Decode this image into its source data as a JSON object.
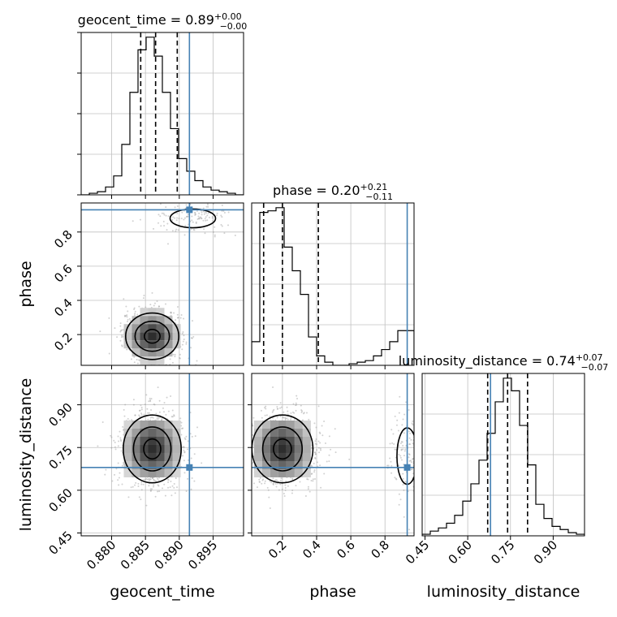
{
  "chart_data": {
    "type": "corner",
    "parameters": [
      "geocent_time",
      "phase",
      "luminosity_distance"
    ],
    "injection": {
      "geocent_time": 0.8915,
      "phase": 0.93,
      "luminosity_distance": 0.68
    },
    "colors": {
      "injection": "#4682b4",
      "contour": "#000000",
      "grid": "#c0c0c0",
      "scatter": "#9a9a9a"
    },
    "grid": true,
    "titles": [
      {
        "param": "geocent_time",
        "prefix": "geocent_time = 0.89",
        "plus": "+0.00",
        "minus": "−0.00"
      },
      {
        "param": "phase",
        "prefix": "phase = 0.20",
        "plus": "+0.21",
        "minus": "−0.11"
      },
      {
        "param": "luminosity_distance",
        "prefix": "luminosity_distance = 0.74",
        "plus": "+0.07",
        "minus": "−0.07"
      }
    ],
    "axes": {
      "geocent_time": {
        "label": "geocent_time",
        "range": [
          0.8755,
          0.8995
        ],
        "ticks": [
          0.88,
          0.885,
          0.89,
          0.895
        ],
        "tick_labels": [
          "0.880",
          "0.885",
          "0.890",
          "0.895"
        ]
      },
      "phase": {
        "label": "phase",
        "range": [
          0.02,
          0.97
        ],
        "ticks": [
          0.2,
          0.4,
          0.6,
          0.8
        ],
        "tick_labels": [
          "0.2",
          "0.4",
          "0.6",
          "0.8"
        ]
      },
      "luminosity_distance": {
        "label": "luminosity_distance",
        "range": [
          0.44,
          1.01
        ],
        "ticks": [
          0.45,
          0.6,
          0.75,
          0.9
        ],
        "tick_labels": [
          "0.45",
          "0.60",
          "0.75",
          "0.90"
        ]
      }
    },
    "histograms": [
      {
        "param": "geocent_time",
        "bin_edges": [
          0.8755,
          0.8767,
          0.8779,
          0.8791,
          0.8803,
          0.8815,
          0.8827,
          0.8839,
          0.8851,
          0.8863,
          0.8875,
          0.8887,
          0.8899,
          0.8911,
          0.8923,
          0.8935,
          0.8947,
          0.8959,
          0.8971,
          0.8983,
          0.8995
        ],
        "counts": [
          0,
          1,
          2,
          5,
          12,
          32,
          65,
          92,
          100,
          88,
          65,
          42,
          23,
          15,
          9,
          5,
          3,
          2,
          1,
          0
        ],
        "quantiles": [
          0.8843,
          0.8865,
          0.8897
        ]
      },
      {
        "param": "phase",
        "bin_edges": [
          0.02,
          0.0675,
          0.115,
          0.1625,
          0.21,
          0.2575,
          0.305,
          0.3525,
          0.4,
          0.4475,
          0.495,
          0.5425,
          0.59,
          0.6375,
          0.685,
          0.7325,
          0.78,
          0.8275,
          0.875,
          0.9225,
          0.97
        ],
        "counts": [
          15,
          97,
          98,
          100,
          75,
          60,
          45,
          18,
          6,
          2,
          0,
          0,
          1,
          2,
          3,
          6,
          10,
          15,
          22,
          22
        ],
        "quantiles": [
          0.09,
          0.2,
          0.41
        ]
      },
      {
        "param": "luminosity_distance",
        "bin_edges": [
          0.44,
          0.4685,
          0.497,
          0.5255,
          0.554,
          0.5825,
          0.611,
          0.6395,
          0.668,
          0.6965,
          0.725,
          0.7535,
          0.782,
          0.8105,
          0.839,
          0.8675,
          0.896,
          0.9245,
          0.953,
          0.9815,
          1.01
        ],
        "counts": [
          1,
          3,
          5,
          8,
          13,
          22,
          33,
          48,
          65,
          85,
          100,
          92,
          70,
          45,
          20,
          11,
          6,
          4,
          2,
          1
        ],
        "quantiles": [
          0.67,
          0.74,
          0.81
        ]
      }
    ],
    "scatter_density": [
      {
        "x": "geocent_time",
        "y": "phase",
        "modes": [
          {
            "cx": 0.886,
            "cy": 0.19,
            "sx": 0.0022,
            "sy": 0.08,
            "weight": 0.85
          },
          {
            "cx": 0.892,
            "cy": 0.88,
            "sx": 0.0028,
            "sy": 0.05,
            "weight": 0.15
          }
        ]
      },
      {
        "x": "geocent_time",
        "y": "luminosity_distance",
        "modes": [
          {
            "cx": 0.886,
            "cy": 0.745,
            "sx": 0.0024,
            "sy": 0.07,
            "weight": 1.0
          }
        ]
      },
      {
        "x": "phase",
        "y": "luminosity_distance",
        "modes": [
          {
            "cx": 0.2,
            "cy": 0.745,
            "sx": 0.1,
            "sy": 0.07,
            "weight": 0.85
          },
          {
            "cx": 0.93,
            "cy": 0.72,
            "sx": 0.05,
            "sy": 0.09,
            "weight": 0.15
          }
        ]
      }
    ]
  }
}
